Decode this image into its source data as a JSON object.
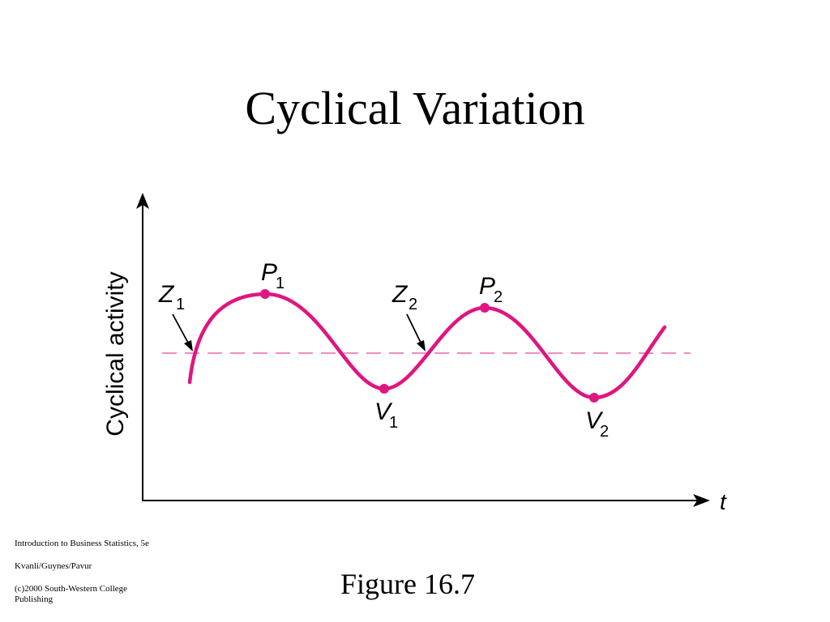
{
  "slide": {
    "title": "Cyclical Variation",
    "caption": "Figure 16.7",
    "footer": {
      "line1": "Introduction to Business Statistics, 5e",
      "line2": "Kvanli/Guynes/Pavur",
      "line3": "(c)2000 South-Western College Publishing"
    }
  },
  "diagram": {
    "y_axis_label": "Cyclical activity",
    "x_axis_label": "t",
    "curve_color": "#e0157f",
    "trend_line_color": "#f08cc0",
    "points": {
      "Z1": {
        "letter": "Z",
        "sub": "1"
      },
      "P1": {
        "letter": "P",
        "sub": "1"
      },
      "V1": {
        "letter": "V",
        "sub": "1"
      },
      "Z2": {
        "letter": "Z",
        "sub": "2"
      },
      "P2": {
        "letter": "P",
        "sub": "2"
      },
      "V2": {
        "letter": "V",
        "sub": "2"
      }
    }
  }
}
